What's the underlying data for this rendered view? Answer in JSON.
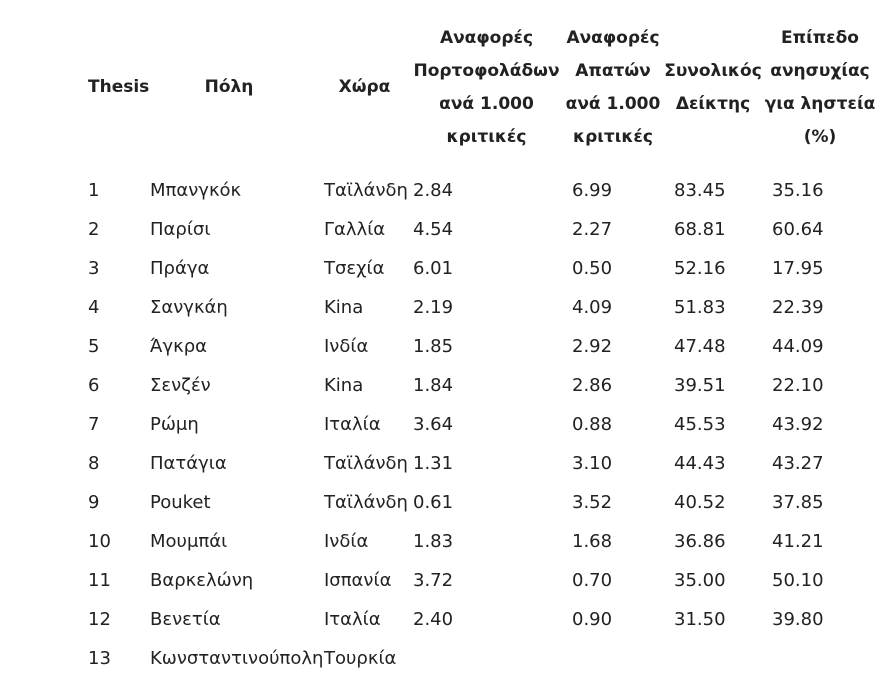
{
  "table": {
    "headers": {
      "thesis": "Thesis",
      "city": "Πόλη",
      "country": "Χώρα",
      "portfolio": "Αναφορές Πορτοφολάδων ανά 1.000 κριτικές",
      "fraud": "Αναφορές Απατών ανά 1.000 κριτικές",
      "total": "Συνολικός Δείκτης",
      "concern": "Επίπεδο ανησυχίας για ληστεία (%)"
    },
    "rows": [
      {
        "rank": "1",
        "city": "Μπανγκόκ",
        "country": "Ταϊλάνδη",
        "portfolio": "2.84",
        "fraud": "6.99",
        "total": "83.45",
        "concern": "35.16"
      },
      {
        "rank": "2",
        "city": "Παρίσι",
        "country": "Γαλλία",
        "portfolio": "4.54",
        "fraud": "2.27",
        "total": "68.81",
        "concern": "60.64"
      },
      {
        "rank": "3",
        "city": "Πράγα",
        "country": "Τσεχία",
        "portfolio": "6.01",
        "fraud": "0.50",
        "total": "52.16",
        "concern": "17.95"
      },
      {
        "rank": "4",
        "city": "Σανγκάη",
        "country": "Kina",
        "portfolio": "2.19",
        "fraud": "4.09",
        "total": "51.83",
        "concern": "22.39"
      },
      {
        "rank": "5",
        "city": "Άγκρα",
        "country": "Ινδία",
        "portfolio": "1.85",
        "fraud": "2.92",
        "total": "47.48",
        "concern": "44.09"
      },
      {
        "rank": "6",
        "city": "Σενζέν",
        "country": "Kina",
        "portfolio": "1.84",
        "fraud": "2.86",
        "total": "39.51",
        "concern": "22.10"
      },
      {
        "rank": "7",
        "city": "Ρώμη",
        "country": "Ιταλία",
        "portfolio": "3.64",
        "fraud": "0.88",
        "total": "45.53",
        "concern": "43.92"
      },
      {
        "rank": "8",
        "city": "Πατάγια",
        "country": "Ταϊλάνδη",
        "portfolio": "1.31",
        "fraud": "3.10",
        "total": "44.43",
        "concern": "43.27"
      },
      {
        "rank": "9",
        "city": "Pouket",
        "country": "Ταϊλάνδη",
        "portfolio": "0.61",
        "fraud": "3.52",
        "total": "40.52",
        "concern": "37.85"
      },
      {
        "rank": "10",
        "city": "Μουμπάι",
        "country": "Ινδία",
        "portfolio": "1.83",
        "fraud": "1.68",
        "total": "36.86",
        "concern": "41.21"
      },
      {
        "rank": "11",
        "city": "Βαρκελώνη",
        "country": "Ισπανία",
        "portfolio": "3.72",
        "fraud": "0.70",
        "total": "35.00",
        "concern": "50.10"
      },
      {
        "rank": "12",
        "city": "Βενετία",
        "country": "Ιταλία",
        "portfolio": "2.40",
        "fraud": "0.90",
        "total": "31.50",
        "concern": "39.80"
      },
      {
        "rank": "13",
        "city": "Κωνσταντινούπολη",
        "country": "Τουρκία",
        "portfolio": "",
        "fraud": "",
        "total": "",
        "concern": ""
      }
    ]
  }
}
